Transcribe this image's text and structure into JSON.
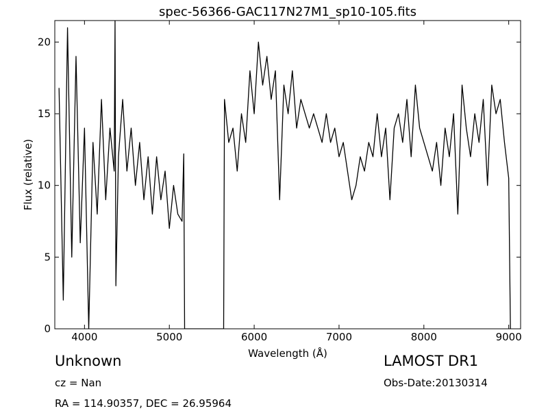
{
  "chart_data": {
    "type": "line",
    "title": "spec-56366-GAC117N27M1_sp10-105.fits",
    "x_label": "Wavelength (Å)",
    "y_label": "Flux (relative)",
    "annotations": [
      "Unknown",
      "cz = Nan",
      "RA = 114.90357, DEC = 26.95964",
      "LAMOST DR1",
      "Obs-Date:20130314"
    ],
    "xlim": [
      3650,
      9140
    ],
    "ylim": [
      0,
      21.5
    ],
    "xticks": [
      4000,
      5000,
      6000,
      7000,
      8000,
      9000
    ],
    "yticks": [
      0,
      5,
      10,
      15,
      20
    ],
    "color": "#000000",
    "x": [
      3700,
      3750,
      3800,
      3850,
      3900,
      3950,
      4000,
      4050,
      4100,
      4150,
      4200,
      4250,
      4300,
      4350,
      4360,
      4370,
      4400,
      4450,
      4500,
      4550,
      4600,
      4650,
      4700,
      4750,
      4800,
      4850,
      4900,
      4950,
      5000,
      5050,
      5100,
      5150,
      5170,
      5180,
      5640,
      5650,
      5700,
      5750,
      5800,
      5850,
      5900,
      5950,
      6000,
      6050,
      6100,
      6150,
      6200,
      6250,
      6300,
      6350,
      6400,
      6450,
      6500,
      6550,
      6600,
      6650,
      6700,
      6750,
      6800,
      6850,
      6900,
      6950,
      7000,
      7050,
      7100,
      7150,
      7200,
      7250,
      7300,
      7350,
      7400,
      7450,
      7500,
      7550,
      7600,
      7650,
      7700,
      7750,
      7800,
      7850,
      7900,
      7950,
      8000,
      8050,
      8100,
      8150,
      8200,
      8250,
      8300,
      8350,
      8400,
      8450,
      8500,
      8550,
      8600,
      8650,
      8700,
      8750,
      8800,
      8850,
      8900,
      8950,
      9000,
      9020
    ],
    "values": [
      16.8,
      2,
      21,
      5,
      19,
      6,
      14,
      0,
      13,
      8,
      16,
      9,
      14,
      11,
      21.5,
      3,
      12,
      16,
      11,
      14,
      10,
      13,
      9,
      12,
      8,
      12,
      9,
      11,
      7,
      10,
      8,
      7.5,
      12.2,
      0,
      0,
      16,
      13,
      14,
      11,
      15,
      13,
      18,
      15,
      20,
      17,
      19,
      16,
      18,
      9,
      17,
      15,
      18,
      14,
      16,
      15,
      14,
      15,
      14,
      13,
      15,
      13,
      14,
      12,
      13,
      11,
      9,
      10,
      12,
      11,
      13,
      12,
      15,
      12,
      14,
      9,
      14,
      15,
      13,
      16,
      12,
      17,
      14,
      13,
      12,
      11,
      13,
      10,
      14,
      12,
      15,
      8,
      17,
      14,
      12,
      15,
      13,
      16,
      10,
      17,
      15,
      16,
      13,
      10.5,
      0
    ]
  }
}
